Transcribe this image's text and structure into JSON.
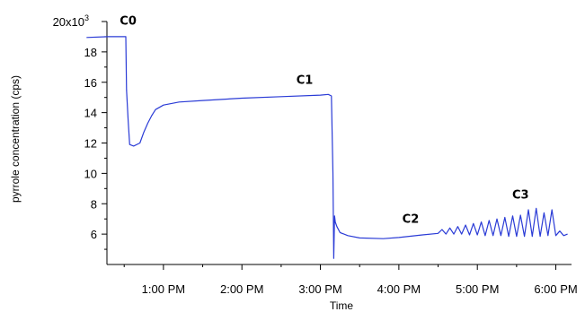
{
  "chart_data": {
    "type": "line",
    "title": "",
    "xlabel": "Time",
    "ylabel": "pyrrole concentration (cps)",
    "y_multiplier_label": "x10",
    "y_multiplier_exp": "3",
    "x_unit": "hours since 12:00 PM",
    "xlim": [
      -0.72,
      5.2
    ],
    "ylim": [
      4,
      20
    ],
    "x_ticks": [
      1,
      2,
      3,
      4,
      5,
      6
    ],
    "x_tick_labels": [
      "1:00 PM",
      "2:00 PM",
      "3:00 PM",
      "4:00 PM",
      "5:00 PM",
      "6:00 PM"
    ],
    "y_ticks": [
      6,
      8,
      10,
      12,
      14,
      16,
      18,
      20
    ],
    "y_tick_labels": [
      "6",
      "8",
      "10",
      "12",
      "14",
      "16",
      "18",
      "20"
    ],
    "grid": false,
    "legend": "none",
    "color": "#2a3bd6",
    "annotations": [
      {
        "text": "C0",
        "x": 0.55,
        "y": 19.8
      },
      {
        "text": "C1",
        "x": 2.8,
        "y": 15.9
      },
      {
        "text": "C2",
        "x": 4.15,
        "y": 6.75
      },
      {
        "text": "C3",
        "x": 5.55,
        "y": 8.35
      }
    ],
    "series": [
      {
        "values_x": [
          0.02,
          0.3,
          0.52,
          0.53,
          0.55,
          0.57,
          0.62,
          0.7,
          0.75,
          0.8,
          0.85,
          0.9,
          1.0,
          1.2,
          1.5,
          2.0,
          2.5,
          3.0,
          3.1,
          3.14,
          3.16,
          3.17,
          3.18,
          3.19,
          3.21,
          3.25,
          3.35,
          3.5,
          3.8,
          4.0,
          4.3,
          4.5,
          4.55,
          4.6,
          4.65,
          4.7,
          4.75,
          4.8,
          4.85,
          4.9,
          4.95,
          5.0,
          5.05,
          5.1,
          5.15,
          5.2,
          5.25,
          5.3,
          5.35,
          5.4,
          5.45,
          5.5,
          5.55,
          5.6,
          5.65,
          5.7,
          5.75,
          5.8,
          5.85,
          5.9,
          5.95,
          6.0,
          6.05,
          6.1,
          6.15
        ],
        "values_y": [
          18.95,
          19.0,
          19.0,
          15.5,
          13.5,
          11.9,
          11.8,
          12.0,
          12.7,
          13.3,
          13.8,
          14.2,
          14.5,
          14.7,
          14.8,
          14.95,
          15.05,
          15.15,
          15.2,
          15.1,
          10.0,
          4.4,
          7.2,
          6.8,
          6.5,
          6.1,
          5.9,
          5.75,
          5.7,
          5.78,
          5.95,
          6.05,
          6.3,
          6.0,
          6.4,
          6.0,
          6.5,
          6.0,
          6.6,
          5.95,
          6.7,
          5.95,
          6.8,
          5.9,
          6.9,
          5.9,
          7.0,
          5.9,
          7.1,
          5.85,
          7.2,
          5.85,
          7.25,
          5.85,
          7.6,
          5.85,
          7.7,
          5.85,
          7.4,
          5.9,
          7.6,
          5.9,
          6.2,
          5.9,
          6.0
        ]
      }
    ]
  }
}
